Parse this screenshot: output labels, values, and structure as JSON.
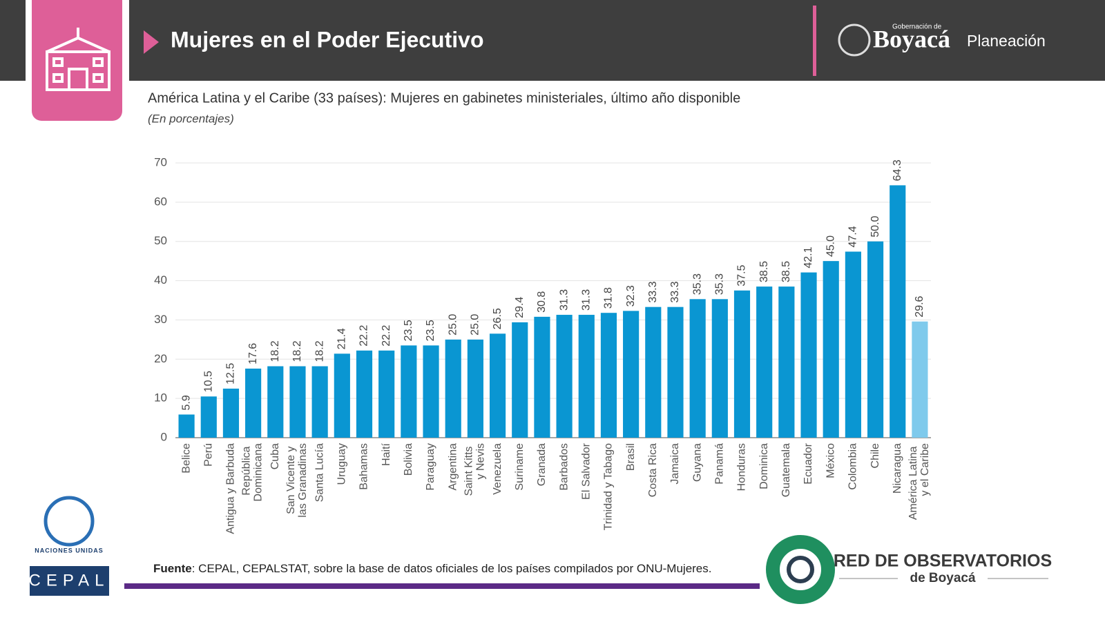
{
  "header": {
    "title": "Mujeres en el Poder Ejecutivo",
    "org_small": "Gobernación de",
    "org_name": "Boyacá",
    "org_unit": "Planeación"
  },
  "chart_data": {
    "type": "bar",
    "title": "América Latina y el Caribe (33 países): Mujeres en gabinetes ministeriales, último año disponible",
    "subtitle": "(En porcentajes)",
    "categories": [
      "Belice",
      "Perú",
      "Antigua y Barbuda",
      "República Dominicana",
      "Cuba",
      "San Vicente y las Granadinas",
      "Santa Lucía",
      "Uruguay",
      "Bahamas",
      "Haití",
      "Bolivia",
      "Paraguay",
      "Argentina",
      "Saint Kitts y Nevis",
      "Venezuela",
      "Suriname",
      "Granada",
      "Barbados",
      "El Salvador",
      "Trinidad y Tabago",
      "Brasil",
      "Costa Rica",
      "Jamaica",
      "Guyana",
      "Panamá",
      "Honduras",
      "Dominica",
      "Guatemala",
      "Ecuador",
      "México",
      "Colombia",
      "Chile",
      "Nicaragua",
      "América Latina y el Caribe"
    ],
    "values": [
      5.9,
      10.5,
      12.5,
      17.6,
      18.2,
      18.2,
      18.2,
      21.4,
      22.2,
      22.2,
      23.5,
      23.5,
      25.0,
      25.0,
      26.5,
      29.4,
      30.8,
      31.3,
      31.3,
      31.8,
      32.3,
      33.3,
      33.3,
      35.3,
      35.3,
      37.5,
      38.5,
      38.5,
      42.1,
      45.0,
      47.4,
      50.0,
      64.3,
      29.6
    ],
    "value_labels": [
      "5.9",
      "10.5",
      "12.5",
      "17.6",
      "18.2",
      "18.2",
      "18.2",
      "21.4",
      "22.2",
      "22.2",
      "23.5",
      "23.5",
      "25.0",
      "25.0",
      "26.5",
      "29.4",
      "30.8",
      "31.3",
      "31.3",
      "31.8",
      "32.3",
      "33.3",
      "33.3",
      "35.3",
      "35.3",
      "37.5",
      "38.5",
      "38.5",
      "42.1",
      "45.0",
      "47.4",
      "50.0",
      "64.3",
      "29.6"
    ],
    "colors": [
      "#0a96d2",
      "#0a96d2",
      "#0a96d2",
      "#0a96d2",
      "#0a96d2",
      "#0a96d2",
      "#0a96d2",
      "#0a96d2",
      "#0a96d2",
      "#0a96d2",
      "#0a96d2",
      "#0a96d2",
      "#0a96d2",
      "#0a96d2",
      "#0a96d2",
      "#0a96d2",
      "#0a96d2",
      "#0a96d2",
      "#0a96d2",
      "#0a96d2",
      "#0a96d2",
      "#0a96d2",
      "#0a96d2",
      "#0a96d2",
      "#0a96d2",
      "#0a96d2",
      "#0a96d2",
      "#0a96d2",
      "#0a96d2",
      "#0a96d2",
      "#0a96d2",
      "#0a96d2",
      "#0a96d2",
      "#7fcaec"
    ],
    "ylim": [
      0,
      70
    ],
    "yticks": [
      0,
      10,
      20,
      30,
      40,
      50,
      60,
      70
    ],
    "grid": true
  },
  "source": {
    "label": "Fuente",
    "text": ": CEPAL, CEPALSTAT, sobre la base de datos oficiales de los países compilados por ONU-Mujeres."
  },
  "logos": {
    "un": "Naciones Unidas",
    "cepal": "CEPAL",
    "red": "RED DE OBSERVATORIOS",
    "red_sub": "de Boyacá"
  }
}
